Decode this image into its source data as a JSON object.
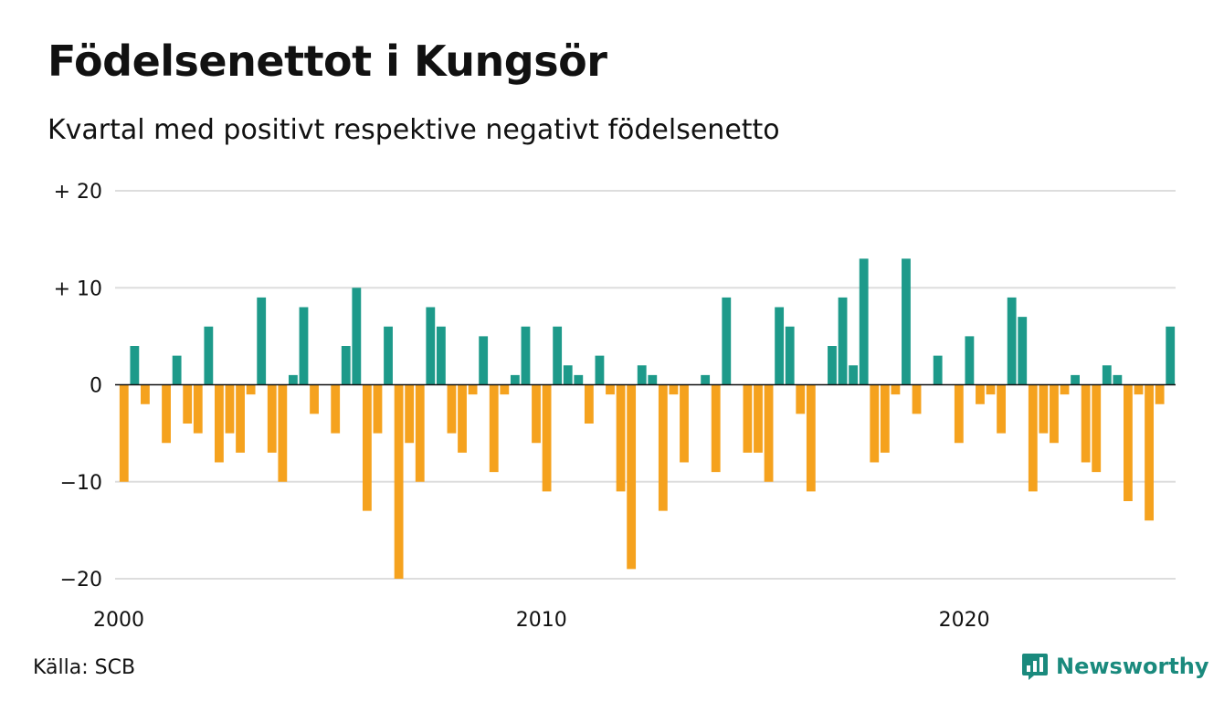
{
  "header": {
    "title": "Födelsenettot i Kungsör",
    "subtitle": "Kvartal med positivt respektive negativt födelsenetto"
  },
  "footer": {
    "source": "Källa: SCB",
    "brand": "Newsworthy"
  },
  "colors": {
    "positive": "#1d9a8a",
    "negative": "#f5a21e",
    "grid": "#dddddd",
    "brand": "#1a8a7d"
  },
  "chart_data": {
    "type": "bar",
    "x_start": "2000 Q1",
    "x_end": "2024 Q4",
    "ylim": [
      -20,
      20
    ],
    "y_ticks": [
      {
        "value": 20,
        "label": "+ 20"
      },
      {
        "value": 10,
        "label": "+ 10"
      },
      {
        "value": 0,
        "label": "0"
      },
      {
        "value": -10,
        "label": "−10"
      },
      {
        "value": -20,
        "label": "−20"
      }
    ],
    "x_ticks": [
      {
        "year": 2000,
        "label": "2000"
      },
      {
        "year": 2010,
        "label": "2010"
      },
      {
        "year": 2020,
        "label": "2020"
      }
    ],
    "grid": true,
    "values": [
      -10,
      4,
      -2,
      0,
      -6,
      3,
      -4,
      -5,
      6,
      -8,
      -5,
      -7,
      -1,
      9,
      -7,
      -10,
      1,
      8,
      -3,
      0,
      -5,
      4,
      10,
      -13,
      -5,
      6,
      -20,
      -6,
      -10,
      8,
      6,
      -5,
      -7,
      -1,
      5,
      -9,
      -1,
      1,
      6,
      -6,
      -11,
      6,
      2,
      1,
      -4,
      3,
      -1,
      -11,
      -19,
      2,
      1,
      -13,
      -1,
      -8,
      0,
      1,
      -9,
      9,
      0,
      -7,
      -7,
      -10,
      8,
      6,
      -3,
      -11,
      0,
      4,
      9,
      2,
      13,
      -8,
      -7,
      -1,
      13,
      -3,
      0,
      3,
      0,
      -6,
      5,
      -2,
      -1,
      -5,
      9,
      7,
      -11,
      -5,
      -6,
      -1,
      1,
      -8,
      -9,
      2,
      1,
      -12,
      -1,
      -14,
      -2,
      6
    ]
  }
}
